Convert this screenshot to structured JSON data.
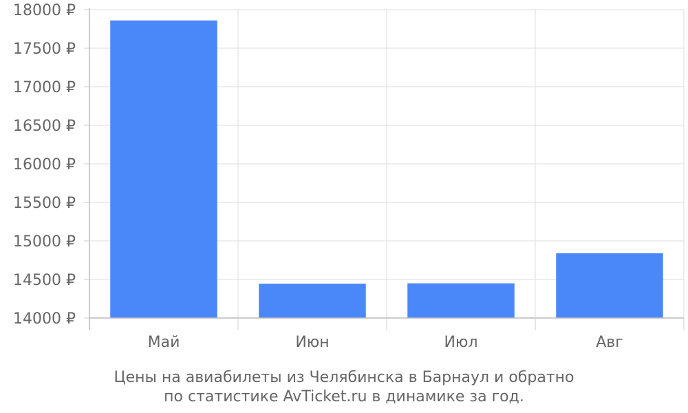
{
  "chart_data": {
    "type": "bar",
    "categories": [
      "Май",
      "Июн",
      "Июл",
      "Авг"
    ],
    "values": [
      17860,
      14445,
      14450,
      14840
    ],
    "ylim": [
      14000,
      18000
    ],
    "yticks": [
      14000,
      14500,
      15000,
      15500,
      16000,
      16500,
      17000,
      17500,
      18000
    ],
    "ytick_labels": [
      "14000 ₽",
      "14500 ₽",
      "15000 ₽",
      "15500 ₽",
      "16000 ₽",
      "16500 ₽",
      "17000 ₽",
      "17500 ₽",
      "18000 ₽"
    ],
    "title": "",
    "xlabel": "",
    "ylabel": "",
    "grid": true,
    "bar_color": "#4a88fa",
    "caption_lines": [
      "Цены на авиабилеты из Челябинска в Барнаул и обратно",
      "по статистике AvTicket.ru в динамике за год."
    ]
  }
}
